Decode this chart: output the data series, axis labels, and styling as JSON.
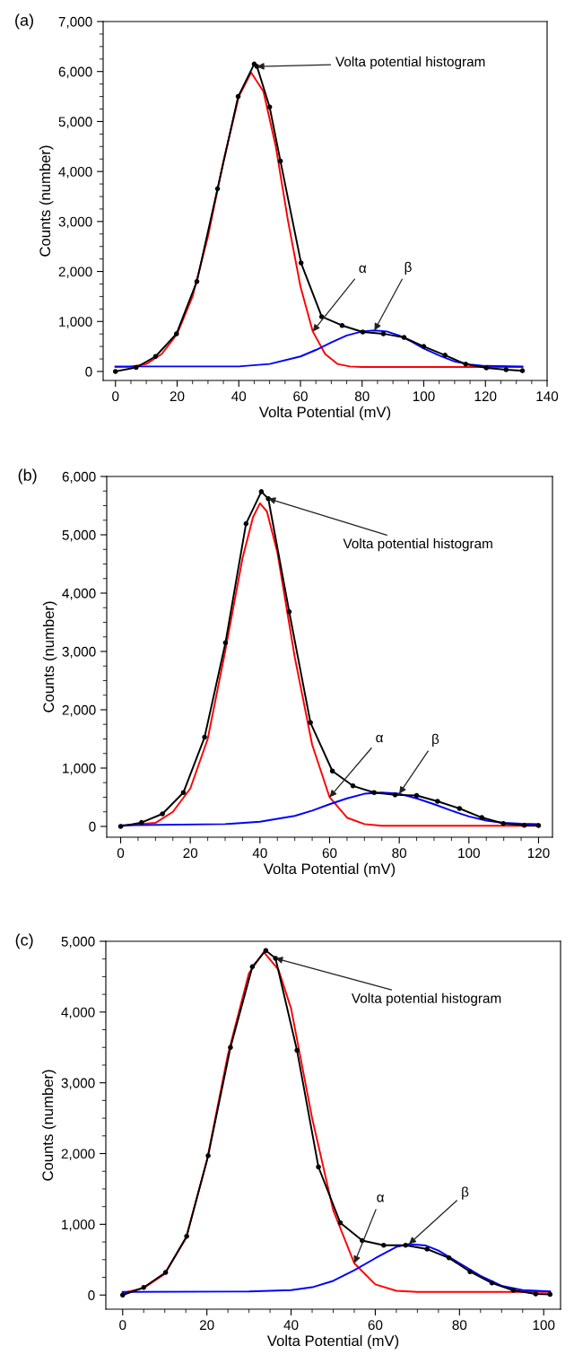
{
  "chart_data": [
    {
      "type": "line",
      "title": "(a)",
      "xlabel": "Volta Potential (mV)",
      "ylabel": "Counts (number)",
      "xlim": [
        -4,
        140
      ],
      "ylim": [
        -180,
        7000
      ],
      "xticks": [
        0,
        20,
        40,
        60,
        80,
        100,
        120,
        140
      ],
      "yticks": [
        {
          "value": 0,
          "label": "0"
        },
        {
          "value": 1000,
          "label": "1,000"
        },
        {
          "value": 2000,
          "label": "2,000"
        },
        {
          "value": 3000,
          "label": "3,000"
        },
        {
          "value": 4000,
          "label": "4,000"
        },
        {
          "value": 5000,
          "label": "5,000"
        },
        {
          "value": 6000,
          "label": "6,000"
        },
        {
          "value": 7000,
          "label": "7,000"
        }
      ],
      "grid": false,
      "legend": false,
      "annotations": [
        {
          "text": "Volta potential histogram",
          "x": 45.9,
          "y": 6100
        },
        {
          "text": "α",
          "x": 64,
          "y": 800
        },
        {
          "text": "β",
          "x": 84,
          "y": 820
        }
      ],
      "series": [
        {
          "color": "#000000",
          "marker": "circle",
          "x": [
            0,
            6.7,
            13,
            19.8,
            26.4,
            33.1,
            39.8,
            45,
            45.9,
            50,
            53.5,
            60.2,
            66.9,
            73.5,
            80.2,
            86.9,
            93.6,
            100,
            106.9,
            113.6,
            120.3,
            126.7,
            132
          ],
          "values": [
            0,
            80,
            300,
            755,
            1800,
            3655,
            5500,
            6150,
            6100,
            5290,
            4210,
            2170,
            1095,
            920,
            790,
            755,
            680,
            500,
            325,
            145,
            72,
            36,
            15
          ]
        },
        {
          "color": "#ff0000",
          "marker": "none",
          "x": [
            0,
            5,
            10,
            15,
            20,
            25,
            30,
            35,
            40,
            44,
            48,
            52,
            56,
            60,
            64,
            68,
            72,
            76,
            80,
            132
          ],
          "values": [
            90,
            95,
            150,
            350,
            750,
            1500,
            2700,
            4200,
            5500,
            5980,
            5600,
            4500,
            3000,
            1700,
            800,
            350,
            150,
            100,
            90,
            90
          ]
        },
        {
          "color": "#0000ff",
          "marker": "none",
          "x": [
            0,
            40,
            50,
            60,
            65,
            70,
            75,
            80,
            84,
            88,
            92,
            96,
            100,
            105,
            110,
            115,
            120,
            132
          ],
          "values": [
            100,
            100,
            150,
            300,
            430,
            580,
            720,
            800,
            820,
            800,
            720,
            600,
            460,
            320,
            200,
            140,
            110,
            100
          ]
        }
      ]
    },
    {
      "type": "line",
      "title": "(b)",
      "xlabel": "Volta Potential (mV)",
      "ylabel": "Counts (number)",
      "xlim": [
        -4,
        124
      ],
      "ylim": [
        -185,
        6000
      ],
      "xticks": [
        0,
        20,
        40,
        60,
        80,
        100,
        120
      ],
      "yticks": [
        {
          "value": 0,
          "label": "0"
        },
        {
          "value": 1000,
          "label": "1,000"
        },
        {
          "value": 2000,
          "label": "2,000"
        },
        {
          "value": 3000,
          "label": "3,000"
        },
        {
          "value": 4000,
          "label": "4,000"
        },
        {
          "value": 5000,
          "label": "5,000"
        },
        {
          "value": 6000,
          "label": "6,000"
        }
      ],
      "grid": false,
      "legend": false,
      "annotations": [
        {
          "text": "Volta potential histogram",
          "x": 42.4,
          "y": 5620
        },
        {
          "text": "α",
          "x": 60,
          "y": 500
        },
        {
          "text": "β",
          "x": 80,
          "y": 560
        }
      ],
      "series": [
        {
          "color": "#000000",
          "marker": "circle",
          "x": [
            0,
            6,
            12,
            18,
            24.1,
            30.1,
            36,
            40.4,
            42.4,
            48.4,
            54.5,
            60.8,
            66.7,
            72.8,
            78.8,
            85,
            91,
            97.3,
            103.7,
            109.9,
            115.9,
            120
          ],
          "values": [
            0,
            67,
            215,
            580,
            1530,
            3150,
            5190,
            5740,
            5620,
            3680,
            1780,
            950,
            695,
            580,
            540,
            530,
            430,
            307,
            153,
            50,
            18,
            15
          ]
        },
        {
          "color": "#ff0000",
          "marker": "none",
          "x": [
            0,
            10,
            15,
            20,
            25,
            30,
            35,
            38,
            40,
            42,
            45,
            50,
            55,
            60,
            65,
            70,
            75,
            120
          ],
          "values": [
            10,
            60,
            250,
            650,
            1500,
            3000,
            4600,
            5300,
            5540,
            5400,
            4700,
            2900,
            1400,
            500,
            150,
            40,
            10,
            10
          ]
        },
        {
          "color": "#0000ff",
          "marker": "none",
          "x": [
            0,
            30,
            40,
            50,
            55,
            60,
            65,
            70,
            75,
            80,
            85,
            90,
            95,
            100,
            105,
            110,
            115,
            120
          ],
          "values": [
            20,
            40,
            80,
            180,
            270,
            380,
            480,
            560,
            580,
            560,
            480,
            380,
            270,
            170,
            100,
            60,
            45,
            40
          ]
        }
      ]
    },
    {
      "type": "line",
      "title": "(c)",
      "xlabel": "Volta Potential (mV)",
      "ylabel": "Counts (number)",
      "xlim": [
        -4,
        104
      ],
      "ylim": [
        -200,
        5000
      ],
      "xticks": [
        0,
        20,
        40,
        60,
        80,
        100
      ],
      "yticks": [
        {
          "value": 0,
          "label": "0"
        },
        {
          "value": 1000,
          "label": "1,000"
        },
        {
          "value": 2000,
          "label": "2,000"
        },
        {
          "value": 3000,
          "label": "3,000"
        },
        {
          "value": 4000,
          "label": "4,000"
        },
        {
          "value": 5000,
          "label": "5,000"
        }
      ],
      "grid": false,
      "legend": false,
      "annotations": [
        {
          "text": "Volta potential histogram",
          "x": 36.3,
          "y": 4760
        },
        {
          "text": "α",
          "x": 55,
          "y": 450
        },
        {
          "text": "β",
          "x": 68,
          "y": 720
        }
      ],
      "series": [
        {
          "color": "#000000",
          "marker": "circle",
          "x": [
            0,
            5,
            10.2,
            15.2,
            20.3,
            25.6,
            30.8,
            34,
            36.3,
            41.4,
            46.5,
            51.7,
            56.9,
            62,
            67.2,
            72.3,
            77.5,
            82.5,
            87.7,
            92.8,
            98.1,
            101.5
          ],
          "values": [
            0,
            107,
            320,
            830,
            1970,
            3500,
            4640,
            4870,
            4760,
            3460,
            1810,
            1020,
            770,
            704,
            704,
            650,
            525,
            330,
            170,
            66,
            15,
            10
          ]
        },
        {
          "color": "#ff0000",
          "marker": "none",
          "x": [
            0,
            5,
            10,
            15,
            20,
            25,
            30,
            33.5,
            37,
            40,
            45,
            50,
            55,
            60,
            65,
            70,
            101.5
          ],
          "values": [
            30,
            100,
            300,
            800,
            1900,
            3400,
            4550,
            4850,
            4600,
            4050,
            2500,
            1200,
            450,
            150,
            60,
            45,
            45
          ]
        },
        {
          "color": "#0000ff",
          "marker": "none",
          "x": [
            0,
            30,
            40,
            45,
            50,
            55,
            60,
            65,
            68,
            72,
            75,
            80,
            85,
            90,
            95,
            101.5
          ],
          "values": [
            45,
            50,
            70,
            110,
            200,
            350,
            520,
            680,
            720,
            700,
            630,
            450,
            270,
            130,
            70,
            50
          ]
        }
      ]
    }
  ]
}
